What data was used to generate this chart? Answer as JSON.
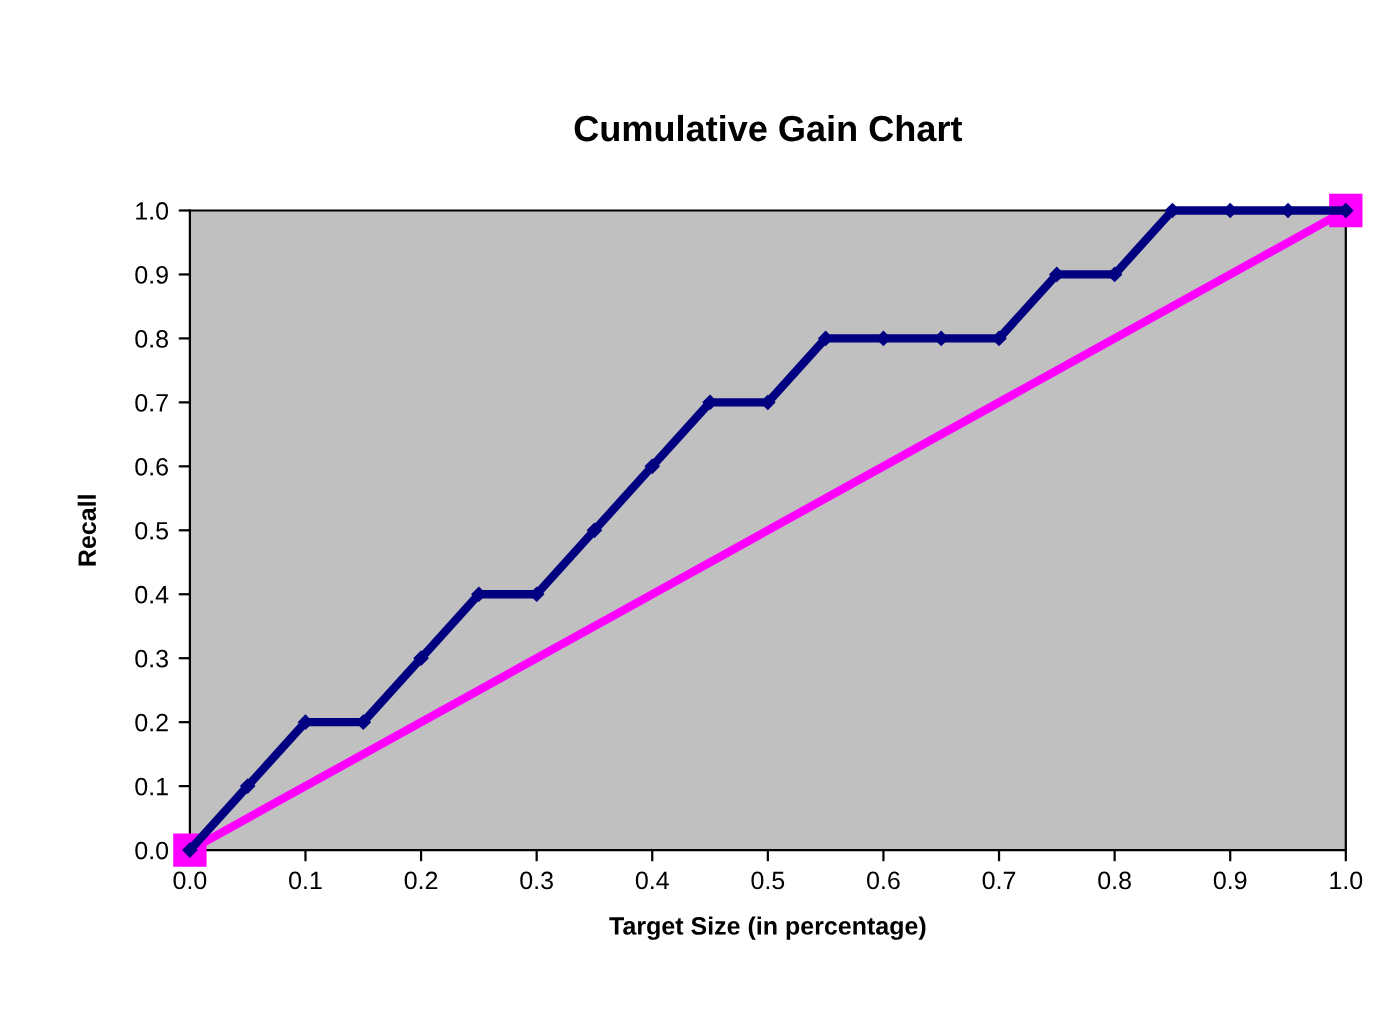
{
  "chart_data": {
    "type": "line",
    "title": "Cumulative Gain Chart",
    "xlabel": "Target Size (in percentage)",
    "ylabel": "Recall",
    "x": [
      0,
      0.05,
      0.1,
      0.15,
      0.2,
      0.25,
      0.3,
      0.35,
      0.4,
      0.45,
      0.5,
      0.55,
      0.6,
      0.65,
      0.7,
      0.75,
      0.8,
      0.85,
      0.9,
      0.95,
      1.0
    ],
    "series": [
      {
        "color": "#000080",
        "marker": "diamond",
        "values": [
          0,
          0.1,
          0.2,
          0.2,
          0.3,
          0.4,
          0.4,
          0.5,
          0.6,
          0.7,
          0.7,
          0.8,
          0.8,
          0.8,
          0.8,
          0.9,
          0.9,
          1.0,
          1.0,
          1.0,
          1.0
        ]
      },
      {
        "color": "#ff00ff",
        "marker": "square",
        "x": [
          0,
          1.0
        ],
        "values": [
          0,
          1.0
        ]
      }
    ],
    "xlim": [
      0,
      1.0
    ],
    "ylim": [
      0,
      1.0
    ],
    "xticks": [
      {
        "value": 0,
        "label": "0.0"
      },
      0.1,
      0.2,
      0.3,
      0.4,
      0.5,
      0.6,
      0.7,
      0.8,
      0.9,
      {
        "value": 1.0,
        "label": "1.0"
      }
    ],
    "yticks": [
      {
        "value": 0,
        "label": "0.0"
      },
      0.1,
      0.2,
      0.3,
      0.4,
      0.5,
      0.6,
      0.7,
      0.8,
      0.9,
      {
        "value": 1.0,
        "label": "1.0"
      }
    ],
    "grid": false,
    "legend": false,
    "line_style": "solid"
  }
}
